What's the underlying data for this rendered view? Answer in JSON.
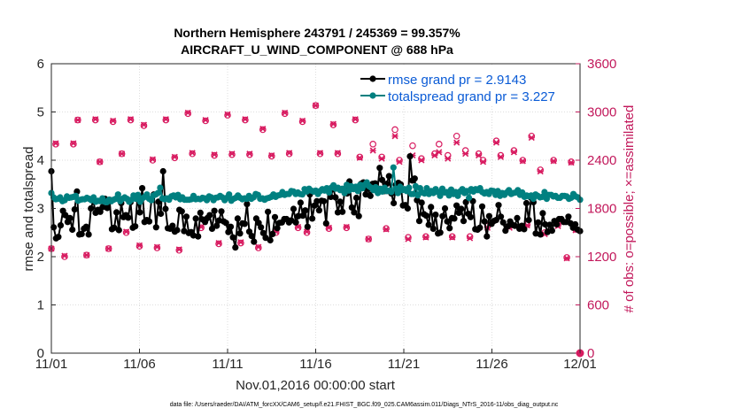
{
  "chart_data": {
    "type": "line",
    "title_line1": "Northern Hemisphere 243791 / 245369 = 99.357%",
    "title_line2": "AIRCRAFT_U_WIND_COMPONENT @ 688 hPa",
    "xlabel": "Nov.01,2016 00:00:00 start",
    "ylabel_left": "rmse and totalspread",
    "ylabel_right": "# of obs: o=possible; ×=assimilated",
    "footnote": "data file: /Users/raeder/DAI/ATM_forcXX/CAM6_setup/f.e21.FHIST_BGC.f09_025.CAM6assim.011/Diags_NTrS_2016-11/obs_diag_output.nc",
    "xlim": [
      0,
      30
    ],
    "ylim_left": [
      0,
      6
    ],
    "ylim_right": [
      0,
      3600
    ],
    "x_ticks": [
      0,
      5,
      10,
      15,
      20,
      25,
      30
    ],
    "x_tick_labels": [
      "11/01",
      "11/06",
      "11/11",
      "11/16",
      "11/21",
      "11/26",
      "12/01"
    ],
    "y_ticks_left": [
      0,
      1,
      2,
      3,
      4,
      5,
      6
    ],
    "y_tick_labels_left": [
      "0",
      "1",
      "2",
      "3",
      "4",
      "5",
      "6"
    ],
    "y_ticks_right": [
      0,
      600,
      1200,
      1800,
      2400,
      3000,
      3600
    ],
    "y_tick_labels_right": [
      "0",
      "600",
      "1200",
      "1800",
      "2400",
      "3000",
      "3600"
    ],
    "legend": [
      {
        "label": "rmse grand pr = 2.9143",
        "color": "#000000"
      },
      {
        "label": "totalspread grand pr = 3.227",
        "color": "#008080"
      }
    ],
    "series": [
      {
        "name": "rmse",
        "color": "#000000",
        "values": [
          3.77,
          2.61,
          2.38,
          2.41,
          2.65,
          2.95,
          2.86,
          2.72,
          2.8,
          2.56,
          2.98,
          3.35,
          2.46,
          2.47,
          2.58,
          2.62,
          2.46,
          3.0,
          3.16,
          2.91,
          2.97,
          2.93,
          3.03,
          3.2,
          3.01,
          3.18,
          2.57,
          2.6,
          2.92,
          2.55,
          3.11,
          2.82,
          2.86,
          2.81,
          3.13,
          2.6,
          2.63,
          3.23,
          2.92,
          3.42,
          2.72,
          2.76,
          2.73,
          3.18,
          3.29,
          2.61,
          3.14,
          2.89,
          3.77,
          2.99,
          2.59,
          2.58,
          2.64,
          2.52,
          2.55,
          2.97,
          2.94,
          2.53,
          2.83,
          2.49,
          2.51,
          2.44,
          2.79,
          2.42,
          2.91,
          2.77,
          2.72,
          2.8,
          2.86,
          2.58,
          2.95,
          2.64,
          2.75,
          2.94,
          2.73,
          2.7,
          2.51,
          2.62,
          2.4,
          2.19,
          2.79,
          2.48,
          2.69,
          2.68,
          3.09,
          2.52,
          2.43,
          2.31,
          2.79,
          2.7,
          2.61,
          2.49,
          2.39,
          2.93,
          2.34,
          2.47,
          2.82,
          2.59,
          2.7,
          2.71,
          2.78,
          2.78,
          2.71,
          2.75,
          2.99,
          2.71,
          2.84,
          3.12,
          2.85,
          2.96,
          2.62,
          3.29,
          2.79,
          3.06,
          3.15,
          2.96,
          3.16,
          3.15,
          2.69,
          3.38,
          3.24,
          3.42,
          3.23,
          2.92,
          3.14,
          2.93,
          3.41,
          3.31,
          3.56,
          3.02,
          2.92,
          3.22,
          2.84,
          3.51,
          3.54,
          3.29,
          3.41,
          3.26,
          3.51,
          3.52,
          3.36,
          3.84,
          3.59,
          3.36,
          3.51,
          3.67,
          3.31,
          3.11,
          3.49,
          3.53,
          3.5,
          3.06,
          3.07,
          3.0,
          4.08,
          3.58,
          3.62,
          3.17,
          2.74,
          3.12,
          2.88,
          2.85,
          2.66,
          3.03,
          2.58,
          2.87,
          2.48,
          2.5,
          2.84,
          3.0,
          2.73,
          2.59,
          2.8,
          2.79,
          3.06,
          2.91,
          2.99,
          2.74,
          3.13,
          2.89,
          2.82,
          3.15,
          2.57,
          2.56,
          2.6,
          3.04,
          2.73,
          2.42,
          2.84,
          2.68,
          2.74,
          2.76,
          3.07,
          2.83,
          2.71,
          2.54,
          2.63,
          2.73,
          2.66,
          2.64,
          2.8,
          2.58,
          2.64,
          2.57,
          3.11,
          2.76,
          3.22,
          3.13,
          2.48,
          2.71,
          2.46,
          2.9,
          2.67,
          2.51,
          2.66,
          2.54,
          2.74,
          2.67,
          2.78,
          2.78,
          2.72,
          2.72,
          2.83,
          2.69,
          2.6,
          2.67,
          2.56,
          2.53
        ]
      },
      {
        "name": "totalspread",
        "color": "#008080",
        "values": [
          3.32,
          3.23,
          3.19,
          3.2,
          3.23,
          3.15,
          3.17,
          3.25,
          3.22,
          3.23,
          3.24,
          3.26,
          3.16,
          3.18,
          3.19,
          3.19,
          3.22,
          3.2,
          3.17,
          3.23,
          3.14,
          3.16,
          3.15,
          3.21,
          3.14,
          3.13,
          3.18,
          3.15,
          3.18,
          3.2,
          3.29,
          3.15,
          3.2,
          3.23,
          3.2,
          3.14,
          3.18,
          3.27,
          3.2,
          3.28,
          3.14,
          3.21,
          3.24,
          3.29,
          3.2,
          3.17,
          3.27,
          3.29,
          3.32,
          3.43,
          3.21,
          3.19,
          3.21,
          3.18,
          3.25,
          3.27,
          3.23,
          3.28,
          3.19,
          3.23,
          3.18,
          3.18,
          3.18,
          3.19,
          3.26,
          3.19,
          3.2,
          3.19,
          3.22,
          3.21,
          3.17,
          3.25,
          3.23,
          3.17,
          3.22,
          3.23,
          3.26,
          3.23,
          3.17,
          3.22,
          3.29,
          3.16,
          3.2,
          3.22,
          3.27,
          3.22,
          3.19,
          3.21,
          3.2,
          3.26,
          3.2,
          3.23,
          3.3,
          3.28,
          3.2,
          3.21,
          3.18,
          3.21,
          3.22,
          3.24,
          3.29,
          3.24,
          3.27,
          3.28,
          3.34,
          3.28,
          3.3,
          3.3,
          3.36,
          3.35,
          3.3,
          3.33,
          3.3,
          3.29,
          3.4,
          3.35,
          3.41,
          3.37,
          3.35,
          3.37,
          3.3,
          3.36,
          3.4,
          3.37,
          3.42,
          3.33,
          3.43,
          3.48,
          3.41,
          3.43,
          3.38,
          3.41,
          3.32,
          3.49,
          3.37,
          3.46,
          3.4,
          3.45,
          3.36,
          3.49,
          3.42,
          3.49,
          3.54,
          3.46,
          3.43,
          3.38,
          3.44,
          3.32,
          3.41,
          3.35,
          3.43,
          3.36,
          3.37,
          3.34,
          3.85,
          3.41,
          3.32,
          3.45,
          3.38,
          3.4,
          3.36,
          3.43,
          3.3,
          3.3,
          3.46,
          3.27,
          3.42,
          3.33,
          3.31,
          3.42,
          3.3,
          3.36,
          3.32,
          3.4,
          3.34,
          3.26,
          3.41,
          3.33,
          3.34,
          3.27,
          3.39,
          3.3,
          3.34,
          3.26,
          3.35,
          3.4,
          3.32,
          3.36,
          3.22,
          3.4,
          3.35,
          3.4,
          3.38,
          3.42,
          3.34,
          3.31,
          3.34,
          3.3,
          3.37,
          3.36,
          3.28,
          3.36,
          3.26,
          3.32,
          3.28,
          3.33,
          3.38,
          3.3,
          3.32,
          3.33,
          3.38,
          3.28,
          3.33,
          3.24,
          3.27,
          3.25,
          3.27,
          3.2,
          3.29,
          3.26,
          3.23,
          3.24,
          3.34,
          3.2,
          3.28,
          3.28,
          3.25,
          3.26,
          3.22,
          3.22,
          3.26,
          3.26,
          3.25,
          3.2,
          3.22,
          3.3,
          3.25,
          3.23,
          3.18
        ]
      }
    ],
    "obs_counts": {
      "x": [
        0.0,
        0.25,
        0.75,
        1.25,
        1.5,
        2.0,
        2.5,
        2.75,
        3.25,
        3.5,
        4.0,
        4.25,
        4.5,
        5.0,
        5.25,
        5.75,
        6.0,
        6.5,
        7.0,
        7.25,
        7.75,
        8.0,
        8.5,
        8.75,
        9.25,
        9.5,
        10.0,
        10.25,
        10.75,
        11.0,
        11.25,
        11.75,
        12.0,
        12.5,
        12.75,
        13.25,
        13.5,
        14.0,
        14.25,
        14.5,
        15.0,
        15.25,
        15.75,
        16.0,
        16.25,
        16.75,
        17.25,
        17.5,
        18.0,
        18.25,
        18.75,
        19.0,
        19.5,
        19.75,
        20.25,
        20.5,
        21.0,
        21.25,
        21.75,
        22.0,
        22.5,
        22.75,
        23.0,
        23.5,
        23.75,
        24.25,
        24.5,
        24.75,
        25.25,
        25.5,
        26.0,
        26.25,
        26.75,
        27.0,
        27.25,
        27.75,
        28.0,
        28.5,
        28.75,
        29.25,
        29.5,
        29.75
      ],
      "possible": [
        1300,
        2600,
        1200,
        2600,
        2900,
        1220,
        2900,
        2380,
        1300,
        2880,
        2480,
        1500,
        2900,
        1330,
        2830,
        2400,
        1310,
        2900,
        2430,
        1280,
        2980,
        2480,
        1560,
        2890,
        2460,
        1360,
        2960,
        2470,
        1370,
        2900,
        2470,
        1310,
        2780,
        2450,
        1500,
        2980,
        2480,
        1560,
        2880,
        1500,
        3080,
        2480,
        1550,
        2840,
        2480,
        1560,
        2900,
        2440,
        1420,
        2600,
        2440,
        1550,
        2780,
        2400,
        1440,
        2580,
        2420,
        1450,
        2480,
        2600,
        2460,
        1450,
        2700,
        2520,
        1450,
        2480,
        2400,
        1580,
        2640,
        2460,
        1580,
        2520,
        2400,
        1600,
        2700,
        2280,
        1500,
        2400,
        1600,
        1190,
        2380,
        1540
      ],
      "assimilated": [
        1300,
        2610,
        1210,
        2610,
        2900,
        1220,
        2910,
        2380,
        1300,
        2890,
        2480,
        1510,
        2910,
        1340,
        2840,
        2410,
        1320,
        2910,
        2440,
        1290,
        2990,
        2490,
        1570,
        2900,
        2470,
        1370,
        2970,
        2480,
        1380,
        2910,
        2480,
        1320,
        2790,
        2460,
        1510,
        2990,
        2490,
        1570,
        2890,
        1510,
        3080,
        2490,
        1560,
        2850,
        2490,
        1570,
        2910,
        2430,
        1420,
        2520,
        2420,
        1540,
        2700,
        2380,
        1420,
        2460,
        2400,
        1440,
        2460,
        2500,
        2420,
        1440,
        2620,
        2480,
        1430,
        2460,
        2380,
        1560,
        2620,
        2440,
        1560,
        2500,
        2390,
        1590,
        2680,
        2260,
        1480,
        2390,
        1580,
        1180,
        2370,
        1530
      ],
      "endpoint": [
        30,
        0
      ]
    }
  }
}
